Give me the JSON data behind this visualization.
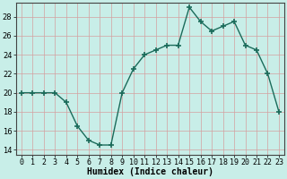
{
  "x": [
    0,
    1,
    2,
    3,
    4,
    5,
    6,
    7,
    8,
    9,
    10,
    11,
    12,
    13,
    14,
    15,
    16,
    17,
    18,
    19,
    20,
    21,
    22,
    23
  ],
  "y": [
    20,
    20,
    20,
    20,
    19,
    16.5,
    15,
    14.5,
    14.5,
    20,
    22.5,
    24,
    24.5,
    25,
    25,
    29,
    27.5,
    26.5,
    27,
    27.5,
    25,
    24.5,
    22,
    18
  ],
  "line_color": "#1a6b5a",
  "marker": "+",
  "marker_size": 4,
  "background_color": "#c8eee8",
  "grid_color": "#d4a0a0",
  "xlabel": "Humidex (Indice chaleur)",
  "xlim": [
    -0.5,
    23.5
  ],
  "ylim": [
    13.5,
    29.5
  ],
  "yticks": [
    14,
    16,
    18,
    20,
    22,
    24,
    26,
    28
  ],
  "xtick_labels": [
    "0",
    "1",
    "2",
    "3",
    "4",
    "5",
    "6",
    "7",
    "8",
    "9",
    "10",
    "11",
    "12",
    "13",
    "14",
    "15",
    "16",
    "17",
    "18",
    "19",
    "20",
    "21",
    "22",
    "23"
  ],
  "axis_fontsize": 7,
  "tick_fontsize": 6
}
